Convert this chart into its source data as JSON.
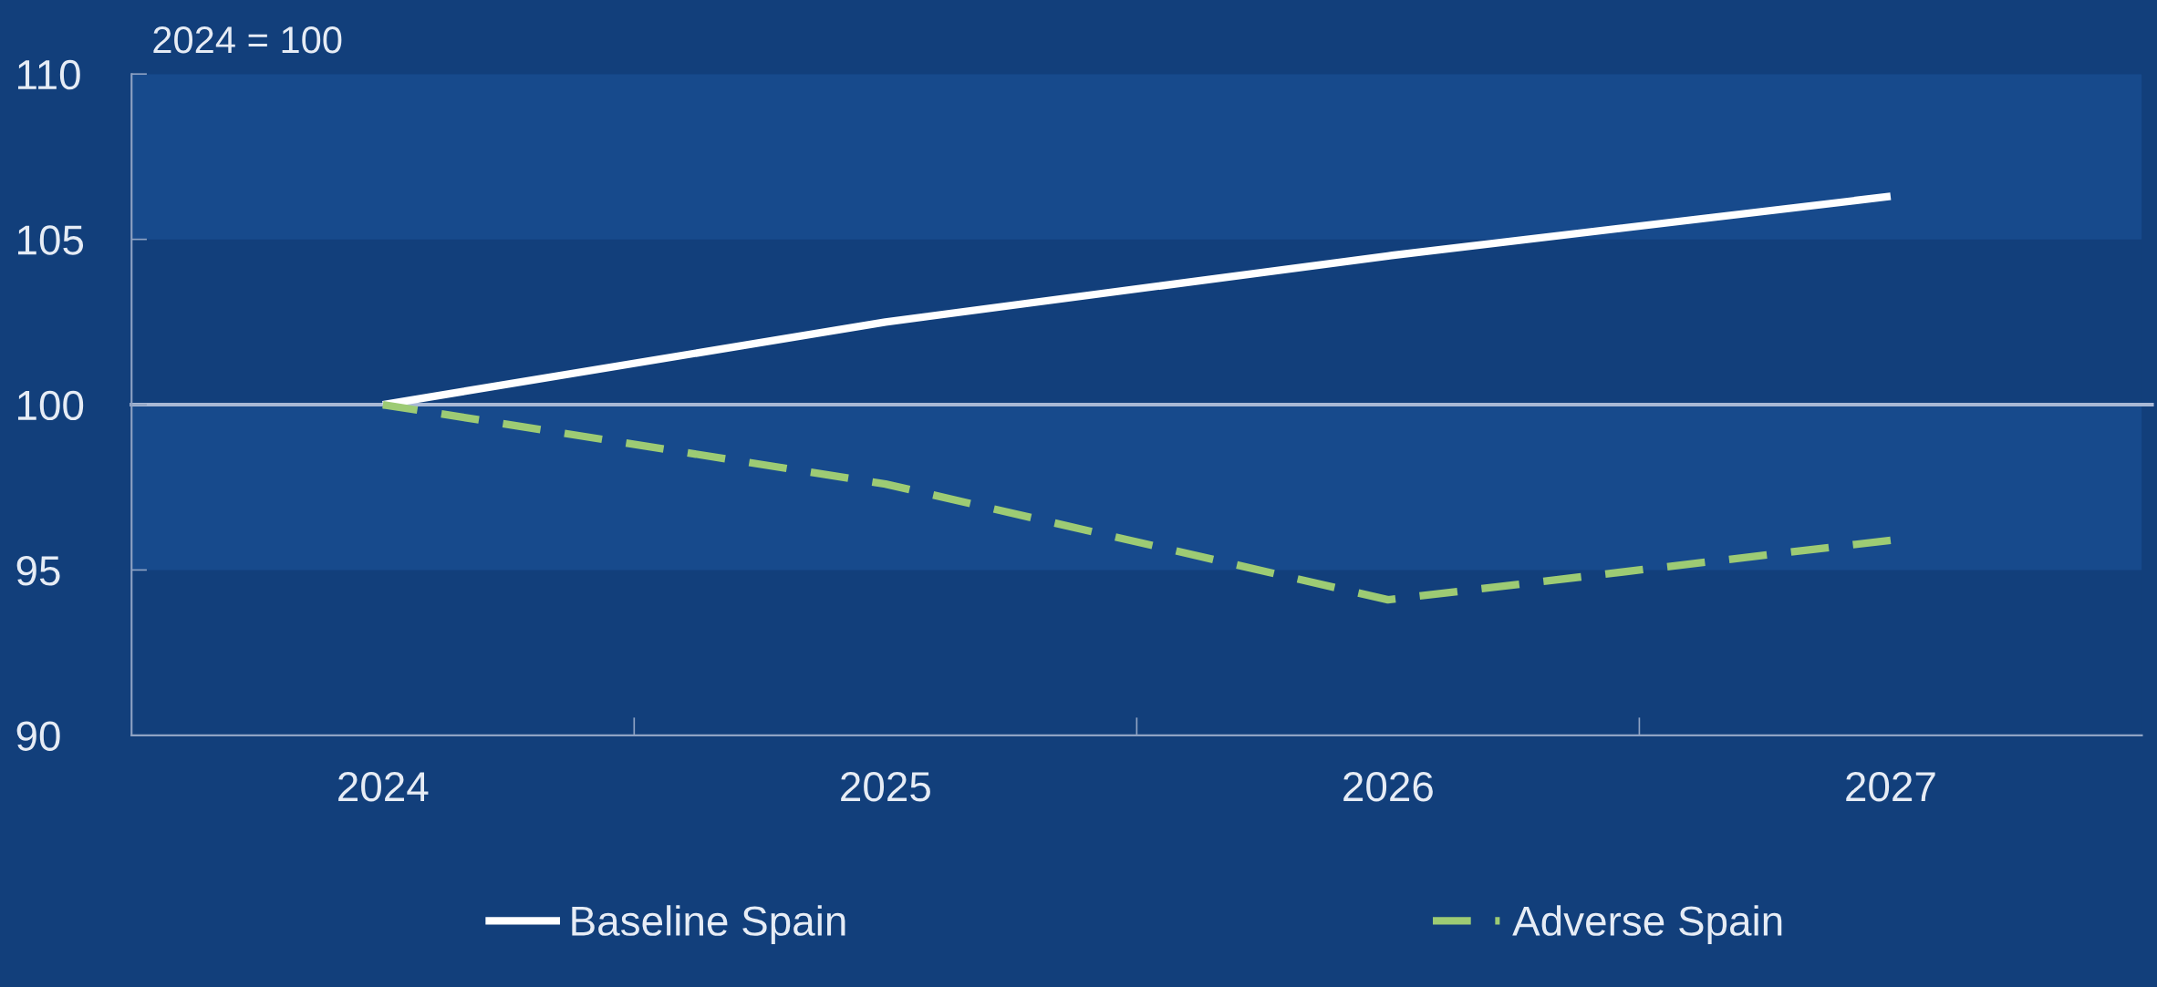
{
  "chart_data": {
    "type": "line",
    "ylabel": "2024 = 100",
    "categories": [
      "2024",
      "2025",
      "2026",
      "2027"
    ],
    "series": [
      {
        "name": "Baseline Spain",
        "color": "#ffffff",
        "values": [
          100,
          102.5,
          104.5,
          106.3
        ],
        "line_style": "solid"
      },
      {
        "name": "Adverse Spain",
        "color": "#9dcb74",
        "values": [
          100,
          97.6,
          94.1,
          95.9
        ],
        "line_style": "dashed"
      }
    ],
    "ylim": [
      90,
      110
    ],
    "yticks": [
      90,
      95,
      100,
      105,
      110
    ],
    "bands": [
      {
        "axis": "y",
        "from": 105,
        "to": 110,
        "color": "#174a8c"
      },
      {
        "axis": "y",
        "from": 95,
        "to": 100,
        "color": "#174a8c"
      }
    ],
    "ref_lines": [
      {
        "axis": "y",
        "value": 100,
        "color": "#a9b9d6",
        "line_style": "solid"
      }
    ],
    "grid": false,
    "legend": "bottom",
    "marker": "none"
  }
}
